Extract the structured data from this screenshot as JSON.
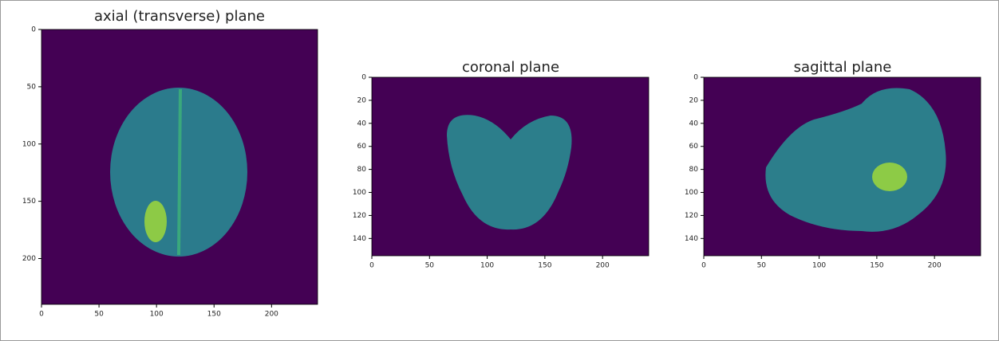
{
  "chart_data": [
    {
      "type": "image",
      "title": "axial (transverse) plane",
      "xlim": [
        0,
        240
      ],
      "ylim": [
        240,
        0
      ],
      "xticks": [
        0,
        50,
        100,
        150,
        200
      ],
      "yticks": [
        0,
        50,
        100,
        150,
        200
      ]
    },
    {
      "type": "image",
      "title": "coronal plane",
      "xlim": [
        0,
        240
      ],
      "ylim": [
        155,
        0
      ],
      "xticks": [
        0,
        50,
        100,
        150,
        200
      ],
      "yticks": [
        0,
        20,
        40,
        60,
        80,
        100,
        120,
        140
      ]
    },
    {
      "type": "image",
      "title": "sagittal plane",
      "xlim": [
        0,
        240
      ],
      "ylim": [
        155,
        0
      ],
      "xticks": [
        0,
        50,
        100,
        150,
        200
      ],
      "yticks": [
        0,
        20,
        40,
        60,
        80,
        100,
        120,
        140
      ]
    }
  ]
}
